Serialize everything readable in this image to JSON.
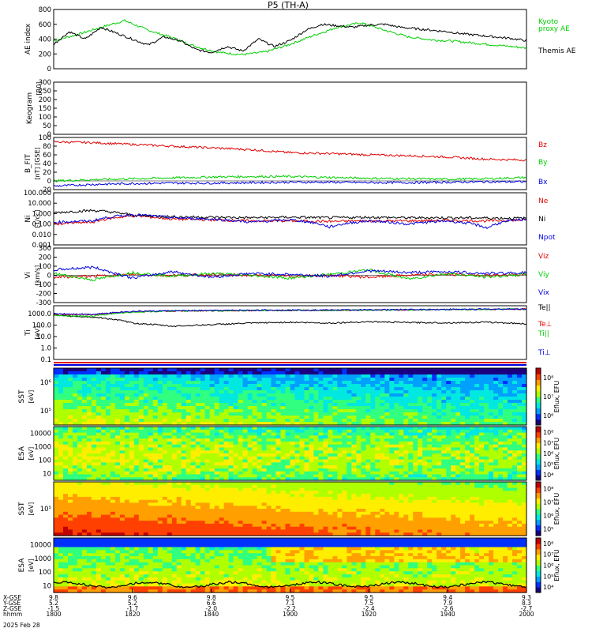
{
  "title": "P5 (TH-A)",
  "footer": {
    "rows": [
      {
        "label": "X-GSE",
        "values": [
          "9.8",
          "9.6",
          "9.8",
          "9.5",
          "9.5",
          "9.4",
          "9.3"
        ]
      },
      {
        "label": "Y-GSE",
        "values": [
          "5.2",
          "5.2",
          "6.6",
          "7.1",
          "7.5",
          "7.9",
          "8.3"
        ]
      },
      {
        "label": "Z-GSE",
        "values": [
          "-1.5",
          "-1.7",
          "-2.0",
          "-2.2",
          "-2.4",
          "-2.6",
          "-2.7"
        ]
      },
      {
        "label": "hhmm",
        "values": [
          "1800",
          "1820",
          "1840",
          "1900",
          "1920",
          "1940",
          "2000"
        ]
      }
    ],
    "date": "2025 Feb 28"
  },
  "colors": {
    "black": "#000000",
    "red": "#e00000",
    "green": "#00d000",
    "blue": "#0000e0"
  },
  "chart_data": [
    {
      "type": "line",
      "id": "ae",
      "ylabel": "AE index",
      "ylim": [
        0,
        800
      ],
      "yticks": [
        "0",
        "200",
        "400",
        "600",
        "800"
      ],
      "series": [
        {
          "name": "Kyoto proxy AE",
          "color": "green",
          "x": [
            0,
            6,
            12,
            18,
            24,
            30,
            36,
            42,
            48,
            54,
            60,
            66,
            72,
            78,
            84,
            90,
            96,
            102,
            108,
            114,
            120
          ],
          "y": [
            380,
            460,
            560,
            650,
            520,
            420,
            300,
            220,
            190,
            230,
            330,
            450,
            560,
            620,
            520,
            430,
            390,
            370,
            340,
            310,
            280
          ]
        },
        {
          "name": "Themis AE",
          "color": "black",
          "x": [
            0,
            4,
            8,
            12,
            16,
            20,
            24,
            28,
            32,
            36,
            40,
            44,
            48,
            52,
            56,
            60,
            64,
            68,
            72,
            76,
            80,
            84,
            88,
            92,
            96,
            100,
            104,
            108,
            112,
            116,
            120
          ],
          "y": [
            330,
            500,
            400,
            560,
            480,
            400,
            320,
            430,
            380,
            260,
            220,
            300,
            240,
            400,
            300,
            380,
            520,
            600,
            580,
            560,
            590,
            600,
            560,
            540,
            520,
            500,
            470,
            450,
            430,
            410,
            380
          ]
        }
      ]
    },
    {
      "type": "heatmap",
      "id": "keogram",
      "ylabel": "Keogram",
      "unit": "[R0]",
      "ylim": [
        0,
        300
      ],
      "yticks": [
        "0",
        "50",
        "100",
        "150",
        "200",
        "250",
        "300"
      ]
    },
    {
      "type": "line",
      "id": "bfield",
      "ylabel": "B_FIT",
      "unit": "[nT] [GSE]",
      "ylim": [
        -20,
        100
      ],
      "yticks": [
        "-20",
        "0",
        "20",
        "40",
        "60",
        "80",
        "100"
      ],
      "series": [
        {
          "name": "Bz",
          "color": "red",
          "x": [
            0,
            10,
            20,
            30,
            40,
            50,
            60,
            70,
            80,
            90,
            100,
            110,
            120
          ],
          "y": [
            90,
            88,
            84,
            80,
            76,
            72,
            65,
            63,
            60,
            58,
            55,
            50,
            48
          ]
        },
        {
          "name": "By",
          "color": "green",
          "x": [
            0,
            10,
            20,
            30,
            40,
            50,
            60,
            70,
            80,
            90,
            100,
            110,
            120
          ],
          "y": [
            0,
            3,
            5,
            7,
            9,
            10,
            10,
            8,
            6,
            5,
            4,
            5,
            8
          ]
        },
        {
          "name": "Bx",
          "color": "blue",
          "x": [
            0,
            10,
            20,
            30,
            40,
            50,
            60,
            70,
            80,
            90,
            100,
            110,
            120
          ],
          "y": [
            -12,
            -8,
            -6,
            -5,
            -5,
            -4,
            -3,
            -3,
            -4,
            -4,
            -3,
            -2,
            -2
          ]
        }
      ]
    },
    {
      "type": "line",
      "id": "density",
      "ylabel": "Ni",
      "unit": "[1/cc]",
      "scale": "log",
      "ylim": [
        0.001,
        100
      ],
      "yticks": [
        "0.001",
        "0.010",
        "0.100",
        "1.000",
        "10.000",
        "100.000"
      ],
      "series": [
        {
          "name": "Ne",
          "color": "red",
          "x": [
            0,
            10,
            20,
            30,
            40,
            50,
            60,
            70,
            80,
            90,
            100,
            110,
            120
          ],
          "y": [
            0.1,
            0.15,
            0.6,
            0.3,
            0.25,
            0.2,
            0.2,
            0.18,
            0.2,
            0.2,
            0.22,
            0.2,
            0.25
          ]
        },
        {
          "name": "Ni",
          "color": "black",
          "x": [
            0,
            10,
            20,
            30,
            40,
            50,
            60,
            70,
            80,
            90,
            100,
            110,
            120
          ],
          "y": [
            1.2,
            2.0,
            0.7,
            0.5,
            0.45,
            0.4,
            0.45,
            0.4,
            0.45,
            0.4,
            0.4,
            0.38,
            0.35
          ]
        },
        {
          "name": "Npot",
          "color": "blue",
          "x": [
            0,
            10,
            20,
            30,
            40,
            50,
            60,
            70,
            80,
            90,
            100,
            110,
            120
          ],
          "y": [
            0.15,
            0.2,
            0.8,
            0.4,
            0.3,
            0.15,
            0.25,
            0.05,
            0.2,
            0.1,
            0.2,
            0.04,
            0.3
          ]
        }
      ]
    },
    {
      "type": "line",
      "id": "velocity",
      "ylabel": "Vi",
      "unit": "[km/s]",
      "ylim": [
        -300,
        300
      ],
      "yticks": [
        "-300",
        "-200",
        "-100",
        "0",
        "100",
        "200",
        "300"
      ],
      "series": [
        {
          "name": "Viz",
          "color": "red",
          "x": [
            0,
            10,
            20,
            30,
            40,
            50,
            60,
            70,
            80,
            90,
            100,
            110,
            120
          ],
          "y": [
            -20,
            -10,
            10,
            0,
            5,
            0,
            -10,
            0,
            -20,
            0,
            10,
            0,
            5
          ]
        },
        {
          "name": "Viy",
          "color": "green",
          "x": [
            0,
            10,
            20,
            30,
            40,
            50,
            60,
            70,
            80,
            90,
            100,
            110,
            120
          ],
          "y": [
            20,
            -50,
            30,
            -10,
            20,
            0,
            -30,
            10,
            60,
            -40,
            20,
            -20,
            10
          ]
        },
        {
          "name": "Vix",
          "color": "blue",
          "x": [
            0,
            10,
            20,
            30,
            40,
            50,
            60,
            70,
            80,
            90,
            100,
            110,
            120
          ],
          "y": [
            60,
            90,
            -30,
            40,
            -20,
            20,
            10,
            -10,
            50,
            30,
            40,
            20,
            30
          ]
        }
      ]
    },
    {
      "type": "line",
      "id": "temperature",
      "ylabel": "Ti",
      "unit": "[eV]",
      "scale": "log",
      "ylim": [
        0.1,
        5000
      ],
      "yticks": [
        "0.1",
        "1.0",
        "10.0",
        "100.0",
        "1000.0"
      ],
      "series": [
        {
          "name": "Te||",
          "color": "black",
          "x": [
            0,
            10,
            20,
            30,
            40,
            50,
            60,
            70,
            80,
            90,
            100,
            110,
            120
          ],
          "y": [
            700,
            500,
            150,
            80,
            110,
            150,
            180,
            150,
            200,
            170,
            160,
            180,
            130
          ]
        },
        {
          "name": "Te⊥",
          "color": "red",
          "x": [
            0,
            10,
            20,
            30,
            40,
            50,
            60,
            70,
            80,
            90,
            100,
            110,
            120
          ],
          "y": [
            900,
            800,
            1500,
            1700,
            1800,
            1900,
            2000,
            2000,
            2100,
            2200,
            2300,
            2400,
            2500
          ]
        },
        {
          "name": "Ti||",
          "color": "green",
          "x": [
            0,
            10,
            20,
            30,
            40,
            50,
            60,
            70,
            80,
            90,
            100,
            110,
            120
          ],
          "y": [
            700,
            600,
            1400,
            1700,
            1800,
            1900,
            2000,
            2000,
            2100,
            2200,
            2300,
            2400,
            2500
          ]
        },
        {
          "name": "Ti⊥",
          "color": "blue",
          "x": [
            0,
            10,
            20,
            30,
            40,
            50,
            60,
            70,
            80,
            90,
            100,
            110,
            120
          ],
          "y": [
            1000,
            900,
            1600,
            1800,
            1900,
            2000,
            2100,
            2100,
            2200,
            2300,
            2400,
            2500,
            2600
          ]
        }
      ]
    },
    {
      "type": "heatmap",
      "id": "sst-i",
      "ylabel": "SST",
      "unit": "[eV]",
      "scale": "log",
      "yticks": [
        "10⁵",
        "10⁶"
      ],
      "colorbar": {
        "label": "Eflux, EFU",
        "ticks": [
          "10⁶",
          "10⁷",
          "10⁸"
        ]
      }
    },
    {
      "type": "heatmap",
      "id": "esa-i",
      "ylabel": "ESA",
      "unit": "[eV]",
      "scale": "log",
      "yticks": [
        "10",
        "100",
        "1000",
        "10000"
      ],
      "colorbar": {
        "label": "Eflux, EFU",
        "ticks": [
          "10⁴",
          "10⁵",
          "10⁶",
          "10⁷",
          "10⁸"
        ]
      }
    },
    {
      "type": "heatmap",
      "id": "sst-e",
      "ylabel": "SST",
      "unit": "[eV]",
      "scale": "log",
      "yticks": [
        "10⁵"
      ],
      "colorbar": {
        "label": "Eflux, EFU",
        "ticks": [
          "10⁵",
          "10⁶",
          "10⁷",
          "10⁸"
        ]
      }
    },
    {
      "type": "heatmap",
      "id": "esa-e",
      "ylabel": "ESA",
      "unit": "[eV]",
      "scale": "log",
      "yticks": [
        "10",
        "100",
        "1000",
        "10000"
      ],
      "colorbar": {
        "label": "Eflux, EFU",
        "ticks": [
          "10⁴",
          "10⁵",
          "10⁶",
          "10⁷",
          "10⁸"
        ]
      }
    }
  ]
}
